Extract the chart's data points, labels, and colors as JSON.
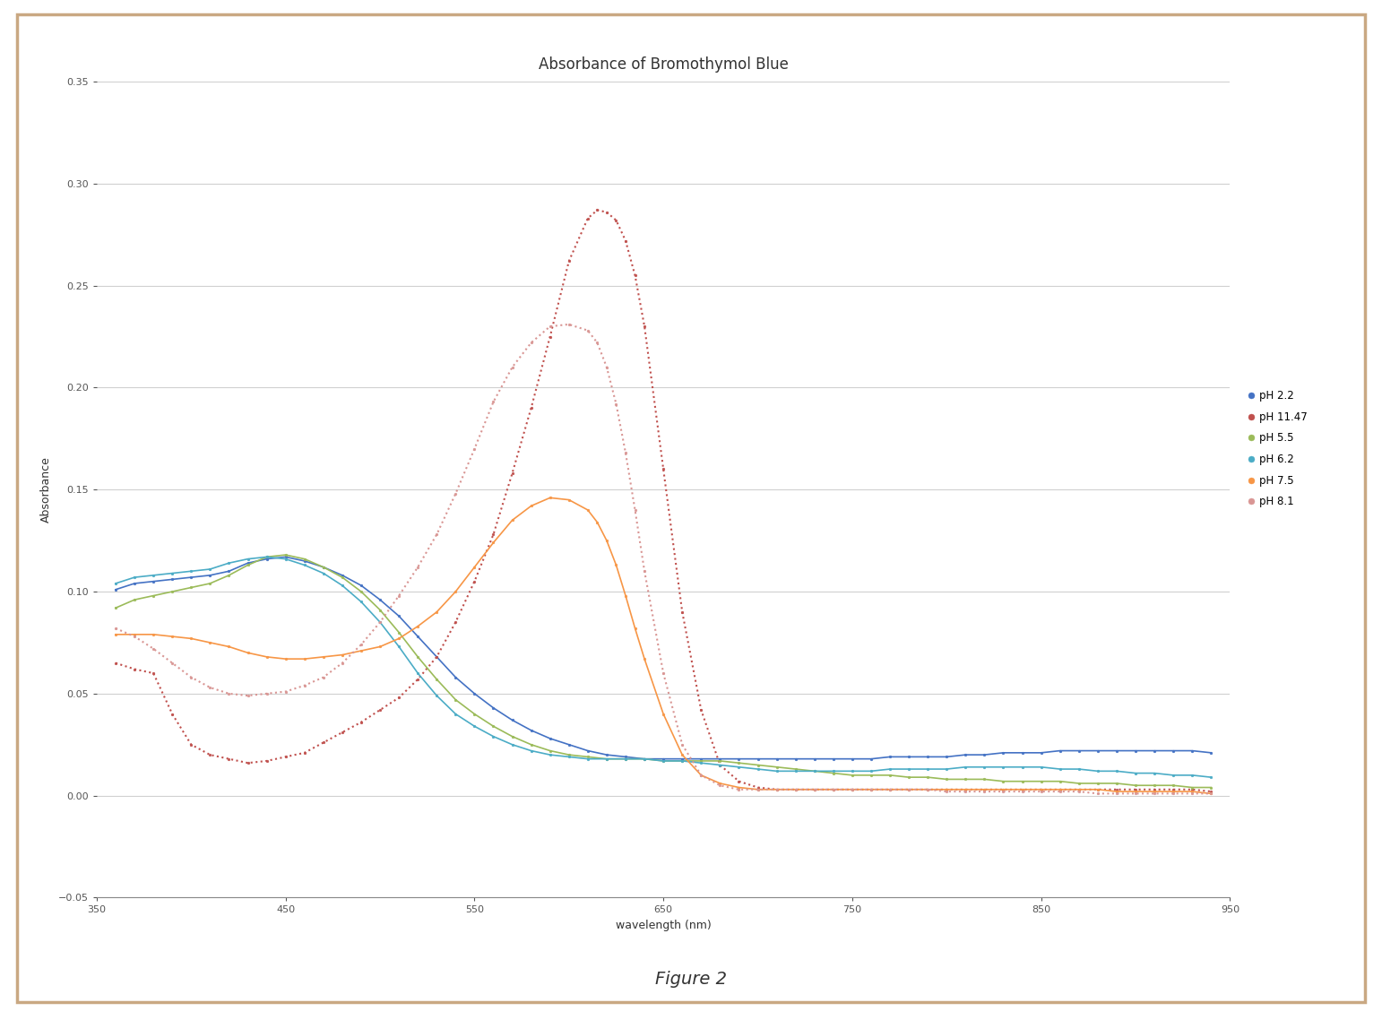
{
  "title": "Absorbance of Bromothymol Blue",
  "xlabel": "wavelength (nm)",
  "ylabel": "Absorbance",
  "xlim": [
    350,
    950
  ],
  "ylim": [
    -0.05,
    0.35
  ],
  "xticks": [
    350,
    450,
    550,
    650,
    750,
    850,
    950
  ],
  "yticks": [
    -0.05,
    0,
    0.05,
    0.1,
    0.15,
    0.2,
    0.25,
    0.3,
    0.35
  ],
  "figure_caption": "Figure 2",
  "series": [
    {
      "label": "pH 2.2",
      "color": "#4472C4",
      "linestyle": "-",
      "marker": "o",
      "markersize": 2,
      "linewidth": 1.2,
      "wavelengths": [
        360,
        370,
        380,
        390,
        400,
        410,
        420,
        430,
        440,
        450,
        460,
        470,
        480,
        490,
        500,
        510,
        520,
        530,
        540,
        550,
        560,
        570,
        580,
        590,
        600,
        610,
        620,
        630,
        640,
        650,
        660,
        670,
        680,
        690,
        700,
        710,
        720,
        730,
        740,
        750,
        760,
        770,
        780,
        790,
        800,
        810,
        820,
        830,
        840,
        850,
        860,
        870,
        880,
        890,
        900,
        910,
        920,
        930,
        940
      ],
      "absorbance": [
        0.101,
        0.104,
        0.105,
        0.106,
        0.107,
        0.108,
        0.11,
        0.114,
        0.116,
        0.117,
        0.115,
        0.112,
        0.108,
        0.103,
        0.096,
        0.088,
        0.078,
        0.068,
        0.058,
        0.05,
        0.043,
        0.037,
        0.032,
        0.028,
        0.025,
        0.022,
        0.02,
        0.019,
        0.018,
        0.018,
        0.018,
        0.018,
        0.018,
        0.018,
        0.018,
        0.018,
        0.018,
        0.018,
        0.018,
        0.018,
        0.018,
        0.019,
        0.019,
        0.019,
        0.019,
        0.02,
        0.02,
        0.021,
        0.021,
        0.021,
        0.022,
        0.022,
        0.022,
        0.022,
        0.022,
        0.022,
        0.022,
        0.022,
        0.021
      ]
    },
    {
      "label": "pH 11.47",
      "color": "#C0504D",
      "linestyle": ":",
      "marker": "o",
      "markersize": 2,
      "linewidth": 1.5,
      "wavelengths": [
        360,
        370,
        380,
        390,
        400,
        410,
        420,
        430,
        440,
        450,
        460,
        470,
        480,
        490,
        500,
        510,
        520,
        530,
        540,
        550,
        560,
        570,
        580,
        590,
        600,
        610,
        615,
        620,
        625,
        630,
        635,
        640,
        650,
        660,
        670,
        680,
        690,
        700,
        710,
        720,
        730,
        740,
        750,
        760,
        770,
        780,
        790,
        800,
        810,
        820,
        830,
        840,
        850,
        860,
        870,
        880,
        890,
        900,
        910,
        920,
        930,
        940
      ],
      "absorbance": [
        0.065,
        0.062,
        0.06,
        0.04,
        0.025,
        0.02,
        0.018,
        0.016,
        0.017,
        0.019,
        0.021,
        0.026,
        0.031,
        0.036,
        0.042,
        0.048,
        0.057,
        0.068,
        0.085,
        0.105,
        0.128,
        0.158,
        0.19,
        0.225,
        0.262,
        0.283,
        0.287,
        0.286,
        0.282,
        0.272,
        0.255,
        0.23,
        0.16,
        0.09,
        0.042,
        0.015,
        0.007,
        0.004,
        0.003,
        0.003,
        0.003,
        0.003,
        0.003,
        0.003,
        0.003,
        0.003,
        0.003,
        0.003,
        0.003,
        0.003,
        0.003,
        0.003,
        0.003,
        0.003,
        0.003,
        0.003,
        0.003,
        0.003,
        0.003,
        0.003,
        0.003,
        0.002
      ]
    },
    {
      "label": "pH 5.5",
      "color": "#9BBB59",
      "linestyle": "-",
      "marker": "o",
      "markersize": 2,
      "linewidth": 1.2,
      "wavelengths": [
        360,
        370,
        380,
        390,
        400,
        410,
        420,
        430,
        440,
        450,
        460,
        470,
        480,
        490,
        500,
        510,
        520,
        530,
        540,
        550,
        560,
        570,
        580,
        590,
        600,
        610,
        620,
        630,
        640,
        650,
        660,
        670,
        680,
        690,
        700,
        710,
        720,
        730,
        740,
        750,
        760,
        770,
        780,
        790,
        800,
        810,
        820,
        830,
        840,
        850,
        860,
        870,
        880,
        890,
        900,
        910,
        920,
        930,
        940
      ],
      "absorbance": [
        0.092,
        0.096,
        0.098,
        0.1,
        0.102,
        0.104,
        0.108,
        0.113,
        0.117,
        0.118,
        0.116,
        0.112,
        0.107,
        0.1,
        0.091,
        0.08,
        0.068,
        0.057,
        0.047,
        0.04,
        0.034,
        0.029,
        0.025,
        0.022,
        0.02,
        0.019,
        0.018,
        0.018,
        0.018,
        0.017,
        0.017,
        0.017,
        0.017,
        0.016,
        0.015,
        0.014,
        0.013,
        0.012,
        0.011,
        0.01,
        0.01,
        0.01,
        0.009,
        0.009,
        0.008,
        0.008,
        0.008,
        0.007,
        0.007,
        0.007,
        0.007,
        0.006,
        0.006,
        0.006,
        0.005,
        0.005,
        0.005,
        0.004,
        0.004
      ]
    },
    {
      "label": "pH 6.2",
      "color": "#4BACC6",
      "linestyle": "-",
      "marker": "o",
      "markersize": 2,
      "linewidth": 1.2,
      "wavelengths": [
        360,
        370,
        380,
        390,
        400,
        410,
        420,
        430,
        440,
        450,
        460,
        470,
        480,
        490,
        500,
        510,
        520,
        530,
        540,
        550,
        560,
        570,
        580,
        590,
        600,
        610,
        620,
        630,
        640,
        650,
        660,
        670,
        680,
        690,
        700,
        710,
        720,
        730,
        740,
        750,
        760,
        770,
        780,
        790,
        800,
        810,
        820,
        830,
        840,
        850,
        860,
        870,
        880,
        890,
        900,
        910,
        920,
        930,
        940
      ],
      "absorbance": [
        0.104,
        0.107,
        0.108,
        0.109,
        0.11,
        0.111,
        0.114,
        0.116,
        0.117,
        0.116,
        0.113,
        0.109,
        0.103,
        0.095,
        0.085,
        0.073,
        0.06,
        0.049,
        0.04,
        0.034,
        0.029,
        0.025,
        0.022,
        0.02,
        0.019,
        0.018,
        0.018,
        0.018,
        0.018,
        0.017,
        0.017,
        0.016,
        0.015,
        0.014,
        0.013,
        0.012,
        0.012,
        0.012,
        0.012,
        0.012,
        0.012,
        0.013,
        0.013,
        0.013,
        0.013,
        0.014,
        0.014,
        0.014,
        0.014,
        0.014,
        0.013,
        0.013,
        0.012,
        0.012,
        0.011,
        0.011,
        0.01,
        0.01,
        0.009
      ]
    },
    {
      "label": "pH 7.5",
      "color": "#F79646",
      "linestyle": "-",
      "marker": "o",
      "markersize": 2,
      "linewidth": 1.2,
      "wavelengths": [
        360,
        370,
        380,
        390,
        400,
        410,
        420,
        430,
        440,
        450,
        460,
        470,
        480,
        490,
        500,
        510,
        520,
        530,
        540,
        550,
        560,
        570,
        580,
        590,
        600,
        610,
        615,
        620,
        625,
        630,
        635,
        640,
        650,
        660,
        670,
        680,
        690,
        700,
        710,
        720,
        730,
        740,
        750,
        760,
        770,
        780,
        790,
        800,
        810,
        820,
        830,
        840,
        850,
        860,
        870,
        880,
        890,
        900,
        910,
        920,
        930,
        940
      ],
      "absorbance": [
        0.079,
        0.079,
        0.079,
        0.078,
        0.077,
        0.075,
        0.073,
        0.07,
        0.068,
        0.067,
        0.067,
        0.068,
        0.069,
        0.071,
        0.073,
        0.077,
        0.083,
        0.09,
        0.1,
        0.112,
        0.124,
        0.135,
        0.142,
        0.146,
        0.145,
        0.14,
        0.134,
        0.125,
        0.113,
        0.098,
        0.082,
        0.067,
        0.04,
        0.02,
        0.01,
        0.006,
        0.004,
        0.003,
        0.003,
        0.003,
        0.003,
        0.003,
        0.003,
        0.003,
        0.003,
        0.003,
        0.003,
        0.003,
        0.003,
        0.003,
        0.003,
        0.003,
        0.003,
        0.003,
        0.003,
        0.003,
        0.002,
        0.002,
        0.002,
        0.002,
        0.002,
        0.001
      ]
    },
    {
      "label": "pH 8.1",
      "color": "#D99694",
      "linestyle": ":",
      "marker": "o",
      "markersize": 2,
      "linewidth": 1.5,
      "wavelengths": [
        360,
        370,
        380,
        390,
        400,
        410,
        420,
        430,
        440,
        450,
        460,
        470,
        480,
        490,
        500,
        510,
        520,
        530,
        540,
        550,
        560,
        570,
        580,
        590,
        600,
        610,
        615,
        620,
        625,
        630,
        635,
        640,
        650,
        660,
        670,
        680,
        690,
        700,
        710,
        720,
        730,
        740,
        750,
        760,
        770,
        780,
        790,
        800,
        810,
        820,
        830,
        840,
        850,
        860,
        870,
        880,
        890,
        900,
        910,
        920,
        930,
        940
      ],
      "absorbance": [
        0.082,
        0.078,
        0.072,
        0.065,
        0.058,
        0.053,
        0.05,
        0.049,
        0.05,
        0.051,
        0.054,
        0.058,
        0.065,
        0.074,
        0.085,
        0.098,
        0.112,
        0.128,
        0.148,
        0.17,
        0.193,
        0.21,
        0.222,
        0.23,
        0.231,
        0.228,
        0.222,
        0.21,
        0.192,
        0.168,
        0.14,
        0.11,
        0.06,
        0.025,
        0.01,
        0.005,
        0.003,
        0.003,
        0.003,
        0.003,
        0.003,
        0.003,
        0.003,
        0.003,
        0.003,
        0.003,
        0.003,
        0.002,
        0.002,
        0.002,
        0.002,
        0.002,
        0.002,
        0.002,
        0.002,
        0.001,
        0.001,
        0.001,
        0.001,
        0.001,
        0.001,
        0.001
      ]
    }
  ],
  "background_color": "#FFFFFF",
  "border_color": "#C9A882",
  "grid_color": "#D0D0D0"
}
